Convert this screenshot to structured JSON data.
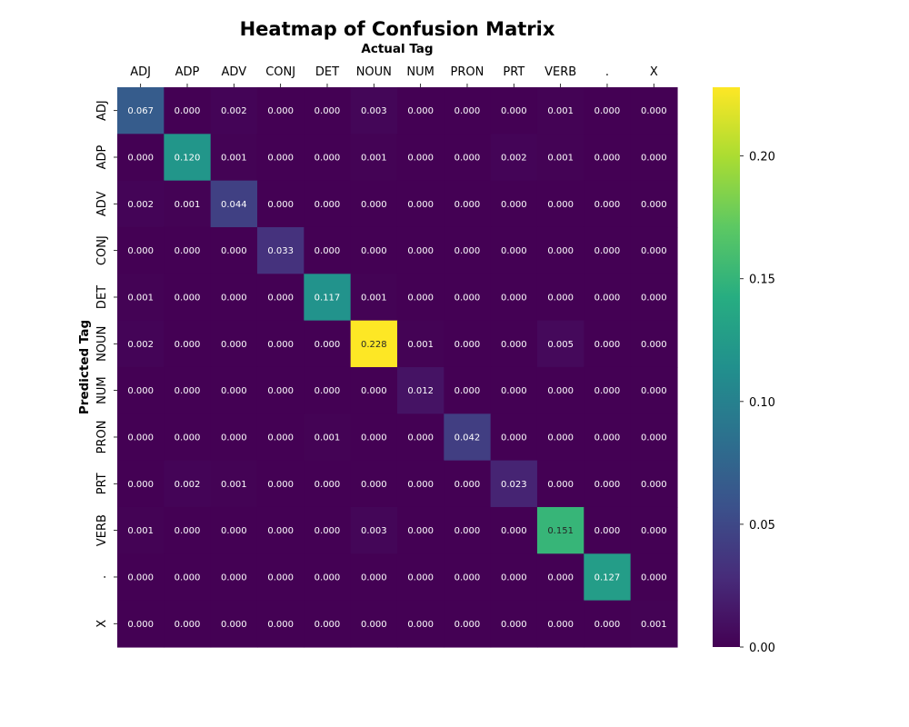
{
  "chart_data": {
    "type": "heatmap",
    "title": "Heatmap of Confusion Matrix",
    "xlabel": "Actual Tag",
    "ylabel": "Predicted Tag",
    "x_categories": [
      "ADJ",
      "ADP",
      "ADV",
      "CONJ",
      "DET",
      "NOUN",
      "NUM",
      "PRON",
      "PRT",
      "VERB",
      ".",
      "X"
    ],
    "y_categories": [
      "ADJ",
      "ADP",
      "ADV",
      "CONJ",
      "DET",
      "NOUN",
      "NUM",
      "PRON",
      "PRT",
      "VERB",
      ".",
      "X"
    ],
    "values": [
      [
        0.067,
        0.0,
        0.002,
        0.0,
        0.0,
        0.003,
        0.0,
        0.0,
        0.0,
        0.001,
        0.0,
        0.0
      ],
      [
        0.0,
        0.12,
        0.001,
        0.0,
        0.0,
        0.001,
        0.0,
        0.0,
        0.002,
        0.001,
        0.0,
        0.0
      ],
      [
        0.002,
        0.001,
        0.044,
        0.0,
        0.0,
        0.0,
        0.0,
        0.0,
        0.0,
        0.0,
        0.0,
        0.0
      ],
      [
        0.0,
        0.0,
        0.0,
        0.033,
        0.0,
        0.0,
        0.0,
        0.0,
        0.0,
        0.0,
        0.0,
        0.0
      ],
      [
        0.001,
        0.0,
        0.0,
        0.0,
        0.117,
        0.001,
        0.0,
        0.0,
        0.0,
        0.0,
        0.0,
        0.0
      ],
      [
        0.002,
        0.0,
        0.0,
        0.0,
        0.0,
        0.228,
        0.001,
        0.0,
        0.0,
        0.005,
        0.0,
        0.0
      ],
      [
        0.0,
        0.0,
        0.0,
        0.0,
        0.0,
        0.0,
        0.012,
        0.0,
        0.0,
        0.0,
        0.0,
        0.0
      ],
      [
        0.0,
        0.0,
        0.0,
        0.0,
        0.001,
        0.0,
        0.0,
        0.042,
        0.0,
        0.0,
        0.0,
        0.0
      ],
      [
        0.0,
        0.002,
        0.001,
        0.0,
        0.0,
        0.0,
        0.0,
        0.0,
        0.023,
        0.0,
        0.0,
        0.0
      ],
      [
        0.001,
        0.0,
        0.0,
        0.0,
        0.0,
        0.003,
        0.0,
        0.0,
        0.0,
        0.151,
        0.0,
        0.0
      ],
      [
        0.0,
        0.0,
        0.0,
        0.0,
        0.0,
        0.0,
        0.0,
        0.0,
        0.0,
        0.0,
        0.127,
        0.0
      ],
      [
        0.0,
        0.0,
        0.0,
        0.0,
        0.0,
        0.0,
        0.0,
        0.0,
        0.0,
        0.0,
        0.0,
        0.001
      ]
    ],
    "value_format": "3 decimals",
    "colormap": "viridis",
    "vmin": 0.0,
    "vmax": 0.228,
    "colorbar_ticks": [
      "0.00",
      "0.05",
      "0.10",
      "0.15",
      "0.20"
    ],
    "colorbar_tick_values": [
      0.0,
      0.05,
      0.1,
      0.15,
      0.2
    ],
    "x_axis_position": "top",
    "grid": false,
    "legend": "colorbar-right"
  }
}
